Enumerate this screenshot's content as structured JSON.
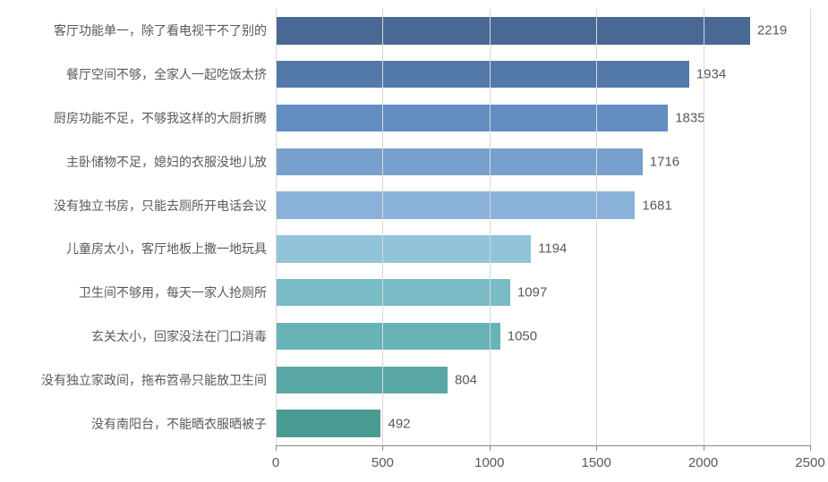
{
  "chart": {
    "type": "bar-horizontal",
    "background_color": "#ffffff",
    "grid_color": "#d9d9d9",
    "axis_color": "#888888",
    "text_color": "#595959",
    "label_fontsize": 14,
    "value_fontsize": 15,
    "tick_fontsize": 15,
    "xlim": [
      0,
      2500
    ],
    "xtick_step": 500,
    "xticks": [
      0,
      500,
      1000,
      1500,
      2000,
      2500
    ],
    "bar_height_ratio": 0.62,
    "items": [
      {
        "label": "客厅功能单一，除了看电视干不了别的",
        "value": 2219,
        "color": "#4a6894"
      },
      {
        "label": "餐厅空间不够，全家人一起吃饭太挤",
        "value": 1934,
        "color": "#5279aa"
      },
      {
        "label": "厨房功能不足，不够我这样的大厨折腾",
        "value": 1835,
        "color": "#638cc0"
      },
      {
        "label": "主卧储物不足，媳妇的衣服没地儿放",
        "value": 1716,
        "color": "#77a0cd"
      },
      {
        "label": "没有独立书房，只能去厕所开电话会议",
        "value": 1681,
        "color": "#8bb2da"
      },
      {
        "label": "儿童房太小，客厅地板上撒一地玩具",
        "value": 1194,
        "color": "#91c3d9"
      },
      {
        "label": "卫生间不够用，每天一家人抢厕所",
        "value": 1097,
        "color": "#7abcc5"
      },
      {
        "label": "玄关太小，回家没法在门口消毒",
        "value": 1050,
        "color": "#68b3b6"
      },
      {
        "label": "没有独立家政间，拖布笤帚只能放卫生间",
        "value": 804,
        "color": "#5aa8a6"
      },
      {
        "label": "没有南阳台，不能晒衣服晒被子",
        "value": 492,
        "color": "#4b9b95"
      }
    ]
  }
}
